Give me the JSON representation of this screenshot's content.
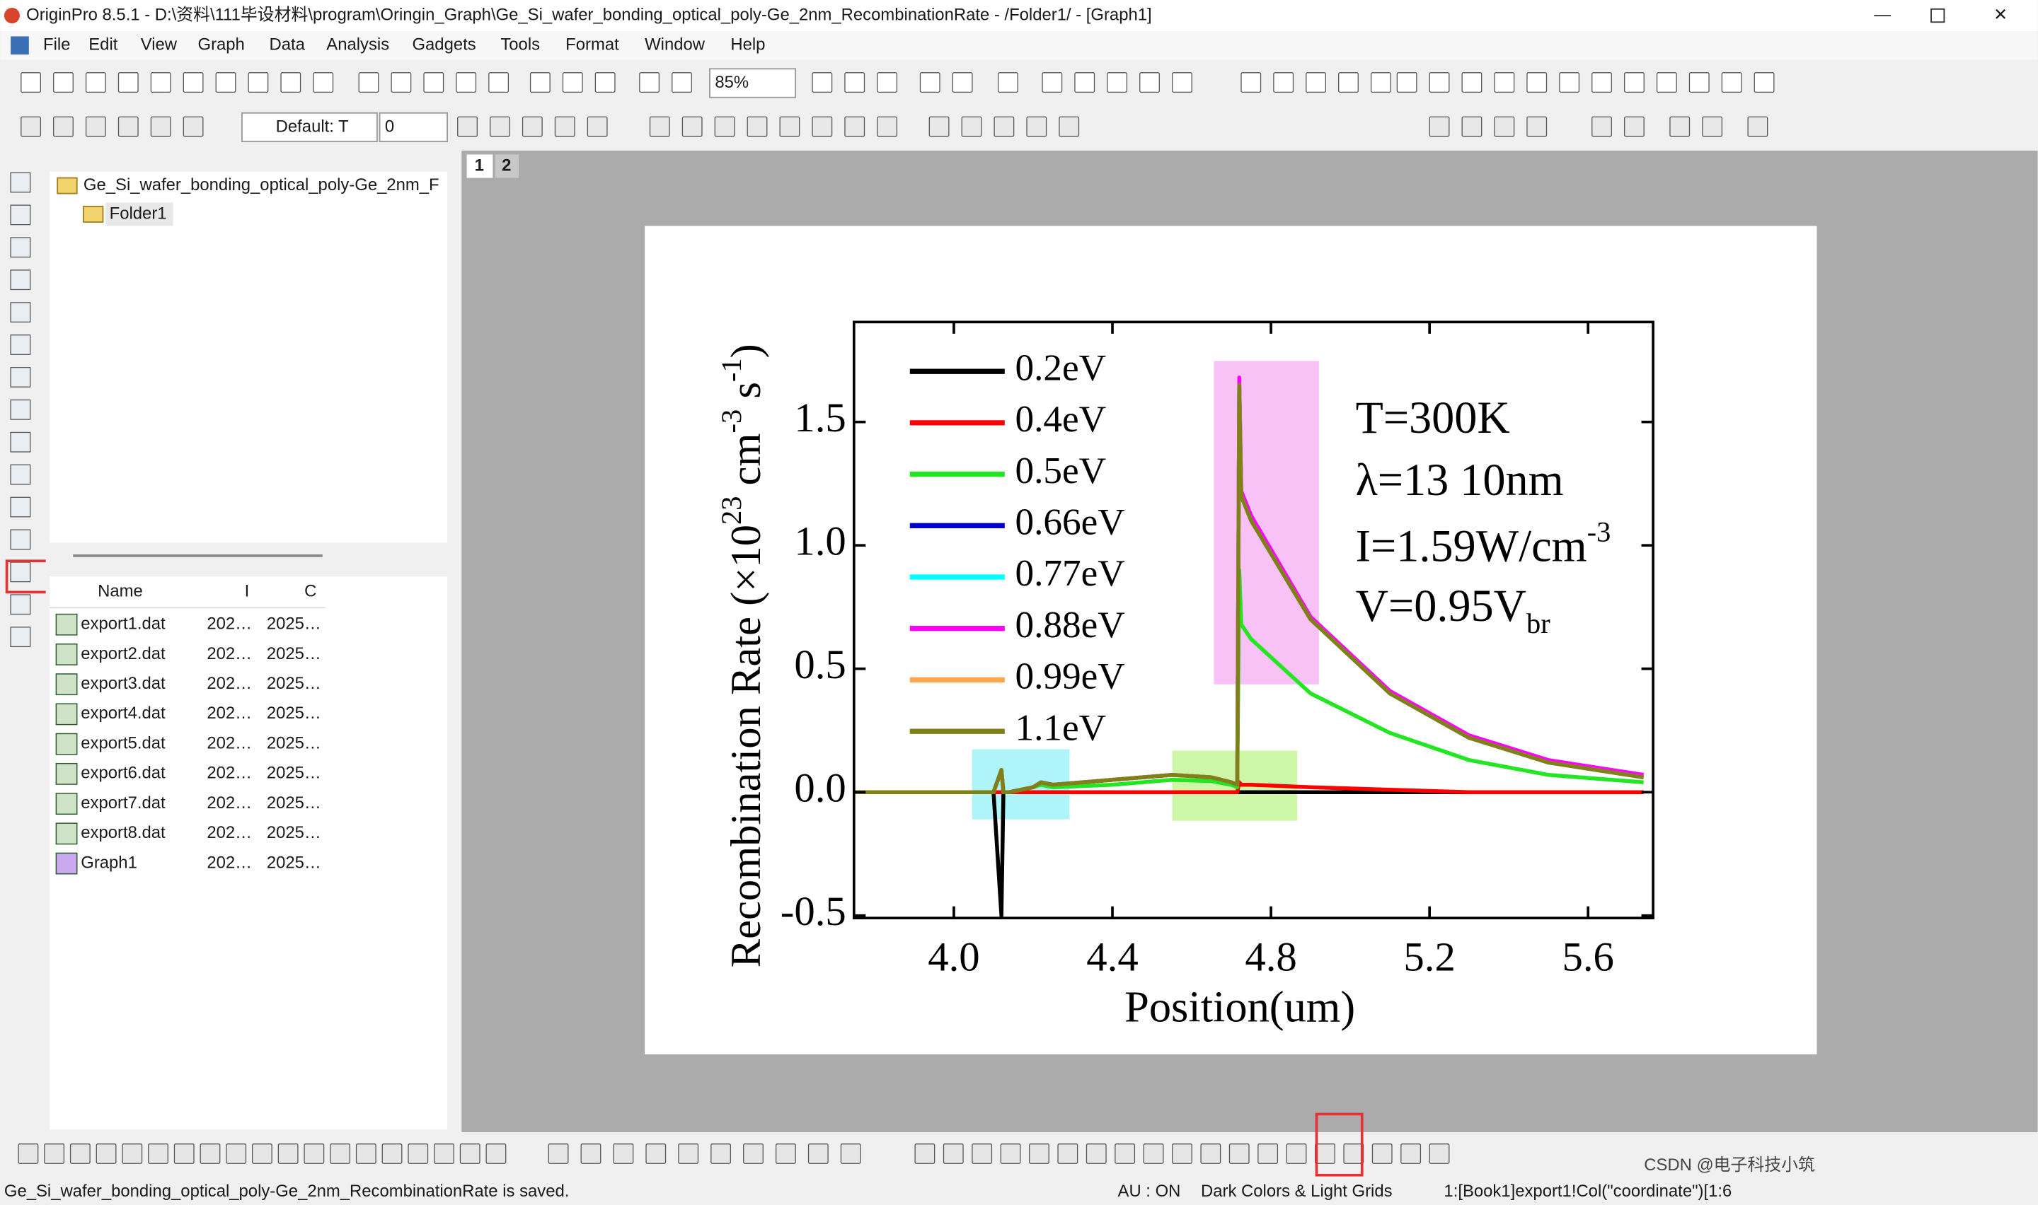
{
  "window": {
    "title": "OriginPro 8.5.1 - D:\\资料\\111毕设材料\\program\\Oringin_Graph\\Ge_Si_wafer_bonding_optical_poly-Ge_2nm_RecombinationRate - /Folder1/ - [Graph1]"
  },
  "menu": [
    "File",
    "Edit",
    "View",
    "Graph",
    "Data",
    "Analysis",
    "Gadgets",
    "Tools",
    "Format",
    "Window",
    "Help"
  ],
  "toolbar": {
    "zoom": "85%",
    "font": "Default: T",
    "font_size": "0"
  },
  "tabs": [
    "1",
    "2"
  ],
  "project_explorer": {
    "tree": [
      "Ge_Si_wafer_bonding_optical_poly-Ge_2nm_F",
      "Folder1"
    ],
    "list": {
      "columns": [
        "Name",
        "I",
        "C"
      ],
      "rows": [
        [
          "export1.dat",
          "202…",
          "2025…"
        ],
        [
          "export2.dat",
          "202…",
          "2025…"
        ],
        [
          "export3.dat",
          "202…",
          "2025…"
        ],
        [
          "export4.dat",
          "202…",
          "2025…"
        ],
        [
          "export5.dat",
          "202…",
          "2025…"
        ],
        [
          "export6.dat",
          "202…",
          "2025…"
        ],
        [
          "export7.dat",
          "202…",
          "2025…"
        ],
        [
          "export8.dat",
          "202…",
          "2025…"
        ],
        [
          "Graph1",
          "202…",
          "2025…"
        ]
      ]
    }
  },
  "chart_data": {
    "type": "line",
    "xlabel": "Position(um)",
    "ylabel_parts": [
      {
        "text": "Recombination Rate (×10"
      },
      {
        "text": "23",
        "script": "sup"
      },
      {
        "text": " cm"
      },
      {
        "text": "-3",
        "script": "sup"
      },
      {
        "text": " s"
      },
      {
        "text": "-1",
        "script": "sup"
      },
      {
        "text": ")"
      }
    ],
    "annotations": [
      {
        "text": "T=300K"
      },
      {
        "text": "λ=13 10nm"
      },
      {
        "text": "I=1.59W/cm",
        "sup": "-3"
      },
      {
        "text": "V=0.95V",
        "sub": "br"
      }
    ],
    "xlim": [
      3.748,
      5.764
    ],
    "ylim": [
      -0.51,
      1.905
    ],
    "xticks": [
      {
        "value": 4.0,
        "label": "4.0"
      },
      {
        "value": 4.4,
        "label": "4.4"
      },
      {
        "value": 4.8,
        "label": "4.8"
      },
      {
        "value": 5.2,
        "label": "5.2"
      },
      {
        "value": 5.6,
        "label": "5.6"
      }
    ],
    "yticks": [
      -0.5,
      {
        "value": 0,
        "label": "0.0"
      },
      0.5,
      {
        "value": 1,
        "label": "1.0"
      },
      1.5
    ],
    "legend": "top-left",
    "highlights": [
      {
        "color": "#aef4f8",
        "xrange": [
          4.046,
          4.292
        ],
        "yrange": [
          -0.11,
          0.174
        ]
      },
      {
        "color": "#cdf7a6",
        "xrange": [
          4.551,
          4.866
        ],
        "yrange": [
          -0.116,
          0.168
        ]
      },
      {
        "color": "#f8c2f6",
        "xrange": [
          4.656,
          4.921
        ],
        "yrange": [
          0.437,
          1.747
        ]
      }
    ],
    "x": [
      3.75,
      4.1,
      4.12,
      4.125,
      4.14,
      4.2,
      4.22,
      4.25,
      4.4,
      4.55,
      4.65,
      4.7,
      4.715,
      4.72,
      4.725,
      4.75,
      4.9,
      5.1,
      5.3,
      5.5,
      5.74
    ],
    "series": [
      {
        "name": "0.2eV",
        "color": "#000000",
        "values": [
          0,
          0,
          -0.5,
          0,
          0,
          0,
          0,
          0,
          0,
          0,
          0,
          0,
          0,
          0,
          0,
          0,
          0,
          0,
          0,
          0,
          0
        ]
      },
      {
        "name": "0.4eV",
        "color": "#ff0000",
        "values": [
          0,
          0,
          0,
          0,
          0,
          0,
          0,
          0,
          0,
          0,
          0,
          0,
          0,
          0.04,
          0.03,
          0.03,
          0.02,
          0.01,
          0,
          0,
          0
        ]
      },
      {
        "name": "0.5eV",
        "color": "#22e622",
        "values": [
          0,
          0,
          0.09,
          0,
          0,
          0.02,
          0.03,
          0.02,
          0.03,
          0.05,
          0.045,
          0.03,
          0.02,
          0.9,
          0.68,
          0.62,
          0.4,
          0.24,
          0.13,
          0.07,
          0.04
        ]
      },
      {
        "name": "0.66eV",
        "color": "#0000cc",
        "values": [
          0,
          0,
          0.09,
          0,
          0,
          0.02,
          0.04,
          0.03,
          0.05,
          0.07,
          0.06,
          0.04,
          0.03,
          1.65,
          1.2,
          1.1,
          0.7,
          0.4,
          0.22,
          0.12,
          0.06
        ]
      },
      {
        "name": "0.77eV",
        "color": "#00ffff",
        "values": [
          0,
          0,
          0.09,
          0,
          0,
          0.02,
          0.04,
          0.03,
          0.05,
          0.07,
          0.06,
          0.04,
          0.03,
          1.65,
          1.2,
          1.1,
          0.7,
          0.4,
          0.22,
          0.12,
          0.06
        ]
      },
      {
        "name": "0.88eV",
        "color": "#ff00ff",
        "values": [
          0,
          0,
          0.09,
          0,
          0,
          0.02,
          0.04,
          0.03,
          0.05,
          0.07,
          0.06,
          0.04,
          0.03,
          1.68,
          1.22,
          1.12,
          0.71,
          0.41,
          0.23,
          0.13,
          0.07
        ]
      },
      {
        "name": "0.99eV",
        "color": "#ffa64d",
        "values": [
          0,
          0,
          0.09,
          0,
          0,
          0.02,
          0.04,
          0.03,
          0.05,
          0.07,
          0.06,
          0.04,
          0.03,
          1.65,
          1.2,
          1.1,
          0.7,
          0.4,
          0.22,
          0.12,
          0.06
        ]
      },
      {
        "name": "1.1eV",
        "color": "#808019",
        "values": [
          0,
          0,
          0.09,
          0,
          0,
          0.02,
          0.04,
          0.03,
          0.05,
          0.07,
          0.06,
          0.04,
          0.03,
          1.65,
          1.2,
          1.1,
          0.7,
          0.4,
          0.22,
          0.12,
          0.06
        ]
      }
    ]
  },
  "status_bar": {
    "message": "Ge_Si_wafer_bonding_optical_poly-Ge_2nm_RecombinationRate is saved.",
    "au": "AU : ON",
    "theme": "Dark Colors & Light Grids",
    "cell": "1:[Book1]export1!Col(\"coordinate\")[1:6"
  },
  "watermark": "CSDN @电子科技小筑"
}
